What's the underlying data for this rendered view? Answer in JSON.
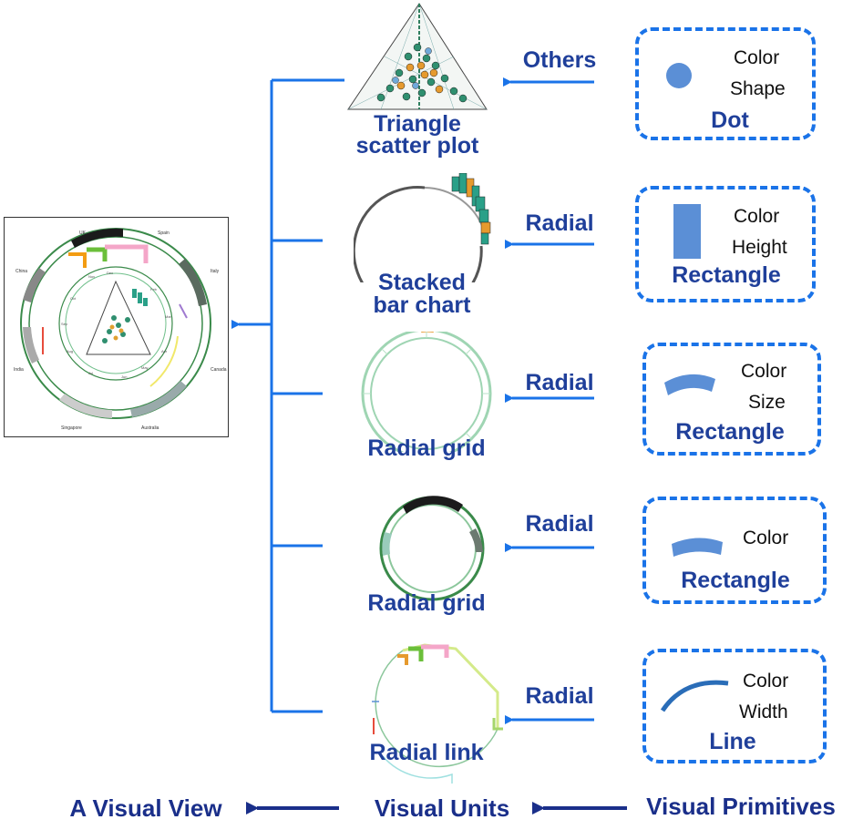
{
  "colors": {
    "accent_blue": "#1a73e8",
    "dark_blue": "#1f3f9a",
    "primitive_fill": "#5b8fd6",
    "box_border": "#1a73e8"
  },
  "units": [
    {
      "name": "Triangle scatter plot",
      "line1": "Triangle",
      "line2": "scatter plot",
      "arrow_label": "Others"
    },
    {
      "name": "Stacked bar chart",
      "line1": "Stacked",
      "line2": "bar chart",
      "arrow_label": "Radial"
    },
    {
      "name": "Radial grid",
      "line1": "Radial grid",
      "line2": "",
      "arrow_label": "Radial"
    },
    {
      "name": "Radial grid",
      "line1": "Radial grid",
      "line2": "",
      "arrow_label": "Radial"
    },
    {
      "name": "Radial link",
      "line1": "Radial link",
      "line2": "",
      "arrow_label": "Radial"
    }
  ],
  "primitives": [
    {
      "shape": "Dot",
      "attrs": [
        "Color",
        "Shape"
      ],
      "icon": "dot-icon"
    },
    {
      "shape": "Rectangle",
      "attrs": [
        "Color",
        "Height"
      ],
      "icon": "rectangle-icon"
    },
    {
      "shape": "Rectangle",
      "attrs": [
        "Color",
        "Size"
      ],
      "icon": "arc-rectangle-icon"
    },
    {
      "shape": "Rectangle",
      "attrs": [
        "Color"
      ],
      "icon": "arc-rectangle-icon"
    },
    {
      "shape": "Line",
      "attrs": [
        "Color",
        "Width"
      ],
      "icon": "curved-line-icon"
    }
  ],
  "view_labels": {
    "mini_months": [
      "Nov",
      "Dec",
      "Oct",
      "Feb",
      "Sep",
      "Mar",
      "Aug",
      "Apr",
      "Jul",
      "Jun",
      "May"
    ],
    "mini_countries": [
      "UK",
      "Spain",
      "China",
      "Italy",
      "India",
      "Canada",
      "Singapore",
      "Australia"
    ]
  },
  "footer": {
    "view": "A Visual View",
    "units": "Visual Units",
    "primitives": "Visual Primitives"
  }
}
